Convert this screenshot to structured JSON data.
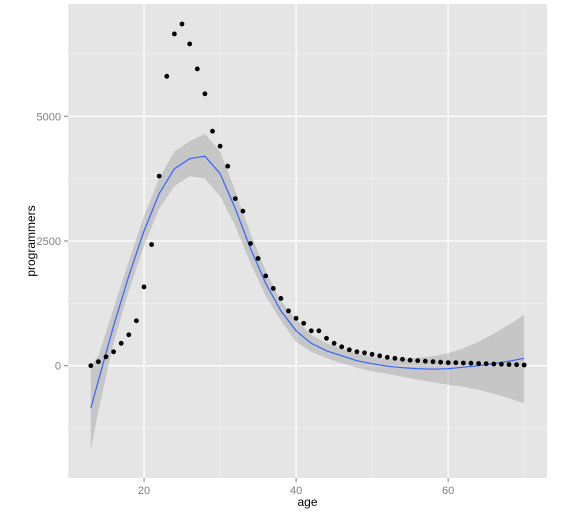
{
  "chart_data": {
    "type": "scatter",
    "xlabel": "age",
    "ylabel": "programmers",
    "xlim": [
      10,
      73
    ],
    "ylim": [
      -2250,
      7250
    ],
    "x_ticks": [
      20,
      40,
      60
    ],
    "y_ticks": [
      0,
      2500,
      5000
    ],
    "x_tick_labels": [
      "20",
      "40",
      "60"
    ],
    "y_tick_labels": [
      "0",
      "2500",
      "5000"
    ],
    "grid": true,
    "legend": "none",
    "series": [
      {
        "kind": "points",
        "x": [
          13,
          14,
          15,
          16,
          17,
          18,
          19,
          20,
          21,
          22,
          23,
          24,
          25,
          26,
          27,
          28,
          29,
          30,
          31,
          32,
          33,
          34,
          35,
          36,
          37,
          38,
          39,
          40,
          41,
          42,
          43,
          44,
          45,
          46,
          47,
          48,
          49,
          50,
          51,
          52,
          53,
          54,
          55,
          56,
          57,
          58,
          59,
          60,
          61,
          62,
          63,
          64,
          65,
          66,
          67,
          68,
          69,
          70
        ],
        "y": [
          0,
          80,
          180,
          280,
          450,
          620,
          900,
          1580,
          2430,
          3800,
          5800,
          6650,
          6850,
          6450,
          5950,
          5450,
          4700,
          4400,
          4000,
          3350,
          3100,
          2450,
          2150,
          1800,
          1550,
          1350,
          1100,
          950,
          850,
          700,
          700,
          550,
          450,
          380,
          320,
          280,
          260,
          230,
          200,
          170,
          150,
          130,
          110,
          100,
          90,
          80,
          70,
          60,
          60,
          55,
          50,
          45,
          40,
          35,
          30,
          25,
          20,
          15
        ]
      },
      {
        "kind": "smooth",
        "x": [
          13,
          14,
          16,
          18,
          20,
          22,
          24,
          26,
          28,
          30,
          32,
          34,
          36,
          38,
          40,
          42,
          44,
          46,
          48,
          50,
          52,
          54,
          56,
          58,
          60,
          62,
          64,
          66,
          68,
          70
        ],
        "y": [
          -850,
          -300,
          800,
          1800,
          2700,
          3450,
          3950,
          4150,
          4200,
          3850,
          3150,
          2350,
          1650,
          1100,
          700,
          450,
          300,
          200,
          100,
          40,
          -10,
          -40,
          -60,
          -70,
          -60,
          -30,
          0,
          40,
          90,
          150
        ],
        "ci_low": [
          -1700,
          -900,
          450,
          1500,
          2400,
          3150,
          3600,
          3800,
          3750,
          3400,
          2800,
          2050,
          1400,
          900,
          480,
          280,
          150,
          50,
          -40,
          -110,
          -160,
          -220,
          -280,
          -330,
          -380,
          -420,
          -480,
          -560,
          -650,
          -750
        ],
        "ci_high": [
          0,
          200,
          1150,
          2100,
          3000,
          3750,
          4300,
          4500,
          4650,
          4300,
          3500,
          2650,
          1900,
          1300,
          920,
          620,
          450,
          350,
          240,
          190,
          140,
          140,
          160,
          190,
          250,
          350,
          480,
          640,
          820,
          1020
        ],
        "color": "#3366FF",
        "ci_color": "#999999"
      }
    ],
    "colors": {
      "panel": "#E5E5E5",
      "grid": "#FFFFFF",
      "points": "#000000",
      "line": "#3366FF"
    }
  }
}
